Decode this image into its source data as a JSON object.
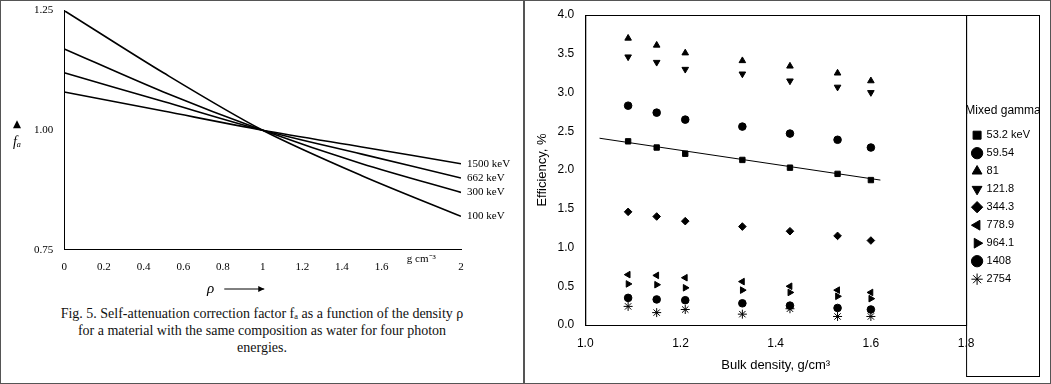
{
  "chart_data": [
    {
      "type": "line",
      "xlabel": "ρ",
      "ylabel": "fₐ",
      "caption": "Fig. 5. Self-attenuation correction factor fₐ as a function of the density ρ for a material with the same composition as water for four photon energies.",
      "x": [
        0,
        0.5,
        1,
        1.5,
        2
      ],
      "series": [
        {
          "name": "1500 keV",
          "color": "#000000",
          "values": [
            1.08,
            1.04,
            1,
            0.965,
            0.93
          ]
        },
        {
          "name": "662 keV",
          "color": "#000000",
          "values": [
            1.12,
            1.06,
            1,
            0.95,
            0.9
          ]
        },
        {
          "name": "300 keV",
          "color": "#000000",
          "values": [
            1.17,
            1.08,
            1,
            0.93,
            0.87
          ]
        },
        {
          "name": "100 keV",
          "color": "#000000",
          "values": [
            1.25,
            1.12,
            1,
            0.905,
            0.82
          ]
        }
      ],
      "xlim": [
        0,
        2
      ],
      "xticks": [
        0,
        0.2,
        0.4,
        0.6,
        0.8,
        1,
        1.2,
        1.4,
        1.6,
        2
      ],
      "ylim": [
        0.75,
        1.25
      ],
      "yticks": [
        0.75,
        {
          "value": 1,
          "label": "1.00"
        },
        1.25
      ],
      "annotations": [
        {
          "text": "g cm⁻³",
          "x": 1.8
        }
      ],
      "grid": false
    },
    {
      "type": "scatter",
      "xlabel": "Bulk density, g/cm³",
      "ylabel": "Efficiency, %",
      "legend_title": "Mixed gamma",
      "legend": "right",
      "x": [
        1.09,
        1.15,
        1.21,
        1.33,
        1.43,
        1.53,
        1.6
      ],
      "series": [
        {
          "name": "53.2 keV",
          "color": "#000000",
          "marker": "square",
          "values": [
            2.37,
            2.29,
            2.21,
            2.13,
            2.03,
            1.95,
            1.87
          ]
        },
        {
          "name": "59.54",
          "color": "#000000",
          "marker": "circle",
          "values": [
            2.83,
            2.74,
            2.65,
            2.56,
            2.47,
            2.39,
            2.29
          ]
        },
        {
          "name": "81",
          "color": "#000000",
          "marker": "triangle-up",
          "values": [
            3.7,
            3.61,
            3.51,
            3.41,
            3.34,
            3.25,
            3.15
          ]
        },
        {
          "name": "121.8",
          "color": "#000000",
          "marker": "triangle-down",
          "values": [
            3.46,
            3.39,
            3.3,
            3.24,
            3.15,
            3.07,
            3.0
          ]
        },
        {
          "name": "344.3",
          "color": "#000000",
          "marker": "diamond",
          "values": [
            1.46,
            1.4,
            1.34,
            1.27,
            1.21,
            1.15,
            1.09
          ]
        },
        {
          "name": "778.9",
          "color": "#000000",
          "marker": "triangle-left",
          "values": [
            0.65,
            0.64,
            0.61,
            0.56,
            0.5,
            0.45,
            0.42
          ]
        },
        {
          "name": "964.1",
          "color": "#000000",
          "marker": "triangle-right",
          "values": [
            0.53,
            0.52,
            0.48,
            0.45,
            0.42,
            0.37,
            0.34
          ]
        },
        {
          "name": "1408",
          "color": "#000000",
          "marker": "circle",
          "values": [
            0.35,
            0.33,
            0.32,
            0.28,
            0.25,
            0.22,
            0.2
          ]
        },
        {
          "name": "2754",
          "color": "#000000",
          "marker": "star",
          "values": [
            0.24,
            0.16,
            0.2,
            0.14,
            0.21,
            0.11,
            0.11
          ]
        },
        {
          "type": "line",
          "color": "#000000",
          "x": [
            1.03,
            1.62
          ],
          "values": [
            2.41,
            1.87
          ]
        }
      ],
      "xlim": [
        1.0,
        1.8
      ],
      "xticks": [
        {
          "value": 1,
          "label": "1.0"
        },
        1.2,
        1.4,
        1.6,
        1.8
      ],
      "ylim": [
        0,
        4
      ],
      "yticks": [
        {
          "value": 0,
          "label": "0.0"
        },
        0.5,
        {
          "value": 1,
          "label": "1.0"
        },
        1.5,
        {
          "value": 2,
          "label": "2.0"
        },
        2.5,
        {
          "value": 3,
          "label": "3.0"
        },
        3.5,
        {
          "value": 4,
          "label": "4.0"
        }
      ],
      "grid": false
    }
  ]
}
